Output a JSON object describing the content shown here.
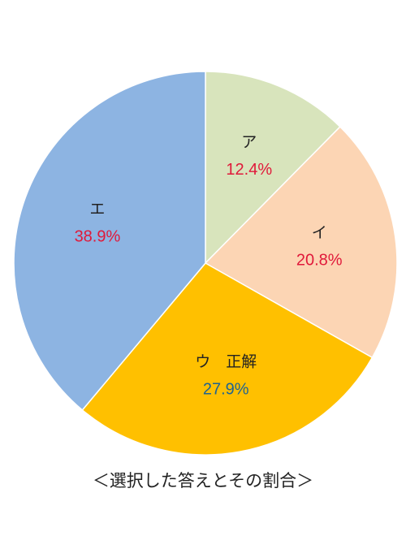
{
  "chart_data": {
    "type": "pie",
    "start": "top",
    "direction": "clockwise",
    "slices": [
      {
        "label": "ア",
        "value": 12.4,
        "value_label": "12.4%",
        "color": "#d8e4bc",
        "value_color": "#e0193a"
      },
      {
        "label": "イ",
        "value": 20.8,
        "value_label": "20.8%",
        "color": "#fcd5b4",
        "value_color": "#e0193a"
      },
      {
        "label": "ウ　正解",
        "value": 27.9,
        "value_label": "27.9%",
        "color": "#ffc000",
        "value_color": "#1f6391"
      },
      {
        "label": "エ",
        "value": 38.9,
        "value_label": "38.9%",
        "color": "#8db4e2",
        "value_color": "#e0193a"
      }
    ]
  },
  "caption": "＜選択した答えとその割合＞"
}
